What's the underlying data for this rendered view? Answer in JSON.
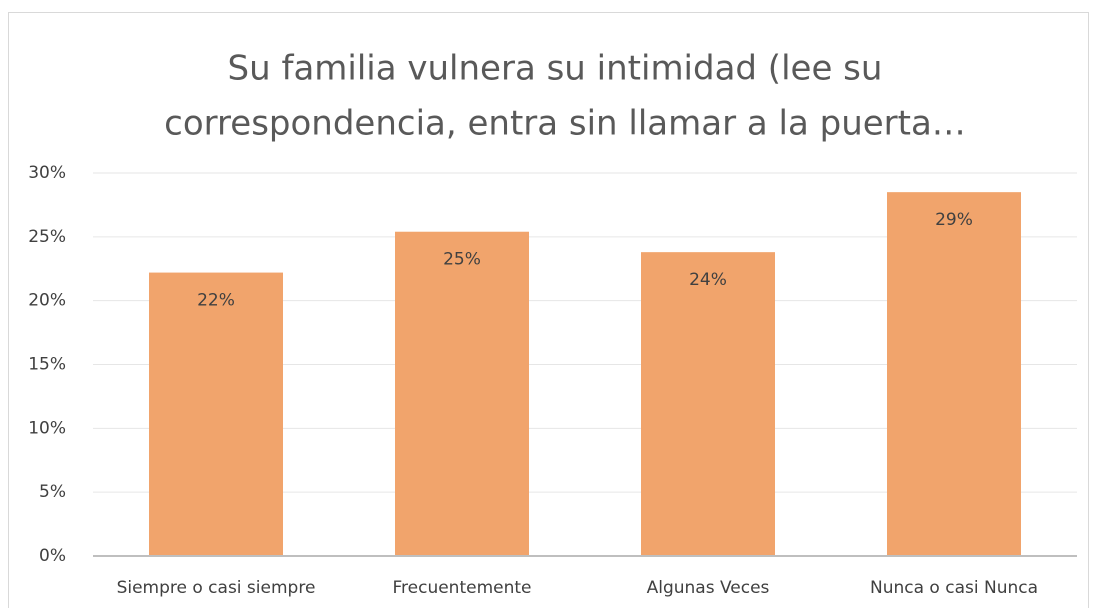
{
  "chart_data": {
    "type": "bar",
    "title": [
      "Su familia vulnera su intimidad (lee su",
      "correspondencia, entra sin llamar a la puerta…"
    ],
    "categories": [
      "Siempre o casi siempre",
      "Frecuentemente",
      "Algunas Veces",
      "Nunca o casi Nunca"
    ],
    "values": [
      22.2,
      25.4,
      23.8,
      28.5
    ],
    "value_labels": [
      "22%",
      "25%",
      "24%",
      "29%"
    ],
    "color": "#f1a46c",
    "ylim": [
      0,
      30
    ],
    "yticks": [
      {
        "value": 0,
        "label": "0%"
      },
      {
        "value": 5,
        "label": "5%"
      },
      {
        "value": 10,
        "label": "10%"
      },
      {
        "value": 15,
        "label": "15%"
      },
      {
        "value": 20,
        "label": "20%"
      },
      {
        "value": 25,
        "label": "25%"
      },
      {
        "value": 30,
        "label": "30%"
      }
    ],
    "grid": true
  }
}
